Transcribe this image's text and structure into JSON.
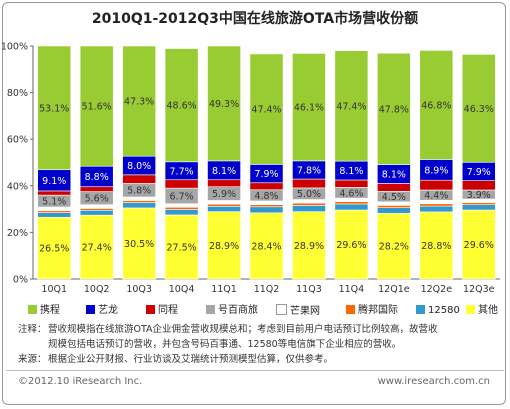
{
  "title": "2010Q1-2012Q3中国在线旅游OTA市场营收份额",
  "notes": {
    "note_label": "注释：",
    "note_line1": "营收规模指在线旅游OTA企业佣金营收规模总和；考虑到目前用户电话预订比例较高，故营收",
    "note_line2": "规模包括电话预订的营收，并包含号码百事通、12580等电信旗下企业相应的营收。",
    "source_label": "来源：",
    "source_text": "根据企业公开财报、行业访谈及艾瑞统计预测模型估算，仅供参考。"
  },
  "footer": {
    "copyright": "©2012.10 iResearch Inc.",
    "url": "www.iresearch.com.cn"
  },
  "colors": {
    "携程": "#99cc33",
    "艺龙": "#0000cc",
    "同程": "#cc0000",
    "号百商旅": "#a6a6a6",
    "芒果网": "#ffffff",
    "腾邦国际": "#ff6600",
    "12580": "#3399cc",
    "其他": "#ffff33"
  },
  "chart_data": {
    "type": "bar",
    "stacked": true,
    "percent_stacked": true,
    "categories": [
      "10Q1",
      "10Q2",
      "10Q3",
      "10Q4",
      "11Q1",
      "11Q2",
      "11Q3",
      "11Q4",
      "12Q1e",
      "12Q2e",
      "12Q3e"
    ],
    "ylim": [
      0,
      100
    ],
    "yticks": [
      "0%",
      "20%",
      "40%",
      "60%",
      "80%",
      "100%"
    ],
    "grid": false,
    "legend_position": "bottom",
    "series": [
      {
        "name": "其他",
        "values": [
          26.5,
          27.4,
          30.5,
          27.5,
          28.9,
          28.4,
          28.9,
          29.6,
          28.2,
          28.8,
          29.6
        ],
        "labels": [
          "26.5%",
          "27.4%",
          "30.5%",
          "27.5%",
          "28.9%",
          "28.4%",
          "28.9%",
          "29.6%",
          "28.2%",
          "28.8%",
          "29.6%"
        ]
      },
      {
        "name": "12580",
        "values": [
          2.0,
          2.1,
          2.3,
          2.4,
          2.3,
          2.6,
          2.7,
          2.6,
          2.4,
          2.5,
          2.3
        ],
        "labels": []
      },
      {
        "name": "腾邦国际",
        "values": [
          0.8,
          0.8,
          0.9,
          0.9,
          0.9,
          0.9,
          1.0,
          1.0,
          1.0,
          1.0,
          0.9
        ],
        "labels": []
      },
      {
        "name": "芒果网",
        "values": [
          1.6,
          1.6,
          1.5,
          1.5,
          1.6,
          1.6,
          1.5,
          1.5,
          1.5,
          1.5,
          1.5
        ],
        "labels": []
      },
      {
        "name": "号百商旅",
        "values": [
          5.1,
          5.6,
          5.8,
          6.7,
          5.9,
          4.8,
          5.0,
          4.6,
          4.5,
          4.4,
          3.9
        ],
        "labels": [
          "5.1%",
          "5.6%",
          "5.8%",
          "6.7%",
          "5.9%",
          "4.8%",
          "5.0%",
          "4.6%",
          "4.5%",
          "4.4%",
          "3.9%"
        ]
      },
      {
        "name": "同程",
        "values": [
          1.8,
          2.1,
          3.7,
          3.6,
          3.0,
          3.0,
          3.8,
          3.2,
          3.4,
          4.2,
          4.0
        ],
        "labels": []
      },
      {
        "name": "艺龙",
        "values": [
          9.1,
          8.8,
          8.0,
          7.7,
          8.1,
          7.9,
          7.8,
          8.1,
          8.1,
          8.9,
          7.9
        ],
        "labels": [
          "9.1%",
          "8.8%",
          "8.0%",
          "7.7%",
          "8.1%",
          "7.9%",
          "7.8%",
          "8.1%",
          "8.1%",
          "8.9%",
          "7.9%"
        ]
      },
      {
        "name": "携程",
        "values": [
          53.1,
          51.6,
          47.3,
          48.6,
          49.3,
          47.4,
          46.1,
          47.4,
          47.8,
          46.8,
          46.3
        ],
        "labels": [
          "53.1%",
          "51.6%",
          "47.3%",
          "48.6%",
          "49.3%",
          "47.4%",
          "46.1%",
          "47.4%",
          "47.8%",
          "46.8%",
          "46.3%"
        ]
      }
    ],
    "legend_order": [
      "携程",
      "艺龙",
      "同程",
      "号百商旅",
      "芒果网",
      "腾邦国际",
      "12580",
      "其他"
    ]
  }
}
